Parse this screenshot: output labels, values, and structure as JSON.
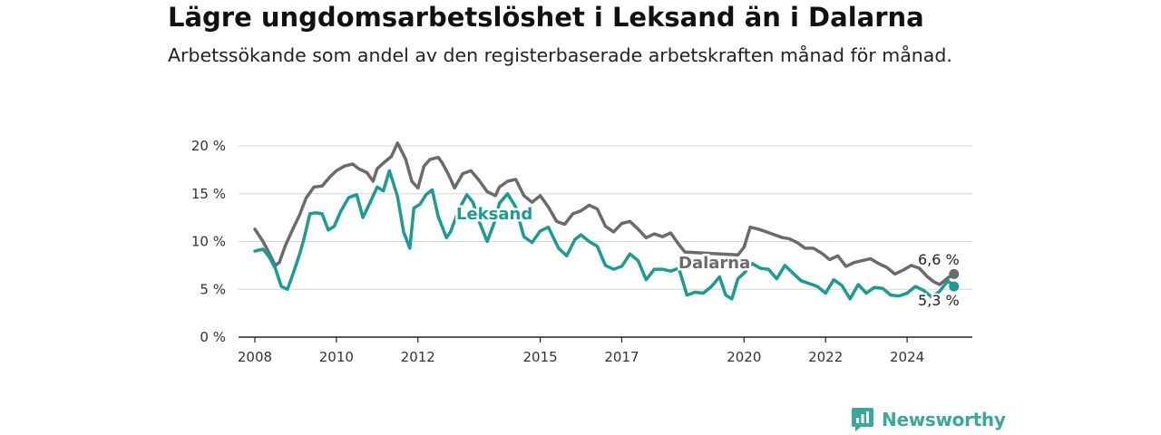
{
  "title": "Lägre ungdomsarbetslöshet i Leksand än i Dalarna",
  "subtitle": "Arbetssökande som andel av den registerbaserade arbetskraften månad för månad.",
  "brand": {
    "name": "Newsworthy",
    "icon": "newsworthy-logo-icon",
    "color": "#3aa79b"
  },
  "colors": {
    "Leksand": "#1a9c92",
    "Dalarna": "#6b6a6f",
    "grid": "#d6d6d6",
    "axis": "#222222"
  },
  "chart_data": {
    "type": "line",
    "ylim": [
      0,
      20
    ],
    "xlim": [
      2007.6,
      2025.6
    ],
    "yticks": [
      {
        "value": 0,
        "label": "0 %"
      },
      {
        "value": 5,
        "label": "5 %"
      },
      {
        "value": 10,
        "label": "10 %"
      },
      {
        "value": 15,
        "label": "15 %"
      },
      {
        "value": 20,
        "label": "20 %"
      }
    ],
    "xticks": [
      {
        "value": 2008,
        "label": "2008"
      },
      {
        "value": 2010,
        "label": "2010"
      },
      {
        "value": 2012,
        "label": "2012"
      },
      {
        "value": 2015,
        "label": "2015"
      },
      {
        "value": 2017,
        "label": "2017"
      },
      {
        "value": 2020,
        "label": "2020"
      },
      {
        "value": 2022,
        "label": "2022"
      },
      {
        "value": 2024,
        "label": "2024"
      }
    ],
    "grid": true,
    "series": [
      {
        "name": "Dalarna",
        "end_label": "6,6 %",
        "x": [
          2008.0,
          2008.2,
          2008.35,
          2008.5,
          2008.6,
          2008.75,
          2008.9,
          2009.1,
          2009.25,
          2009.45,
          2009.65,
          2009.85,
          2010.0,
          2010.2,
          2010.4,
          2010.55,
          2010.75,
          2010.9,
          2011.0,
          2011.15,
          2011.35,
          2011.5,
          2011.7,
          2011.85,
          2012.0,
          2012.15,
          2012.3,
          2012.5,
          2012.6,
          2012.75,
          2012.9,
          2013.1,
          2013.3,
          2013.5,
          2013.7,
          2013.9,
          2014.0,
          2014.2,
          2014.4,
          2014.6,
          2014.8,
          2015.0,
          2015.2,
          2015.4,
          2015.6,
          2015.8,
          2016.0,
          2016.2,
          2016.4,
          2016.6,
          2016.8,
          2017.0,
          2017.2,
          2017.4,
          2017.6,
          2017.8,
          2018.0,
          2018.2,
          2018.4,
          2018.55,
          2019.85,
          2020.0,
          2020.15,
          2020.35,
          2020.55,
          2020.75,
          2020.95,
          2021.1,
          2021.3,
          2021.5,
          2021.7,
          2021.9,
          2022.1,
          2022.3,
          2022.5,
          2022.7,
          2022.9,
          2023.1,
          2023.3,
          2023.5,
          2023.7,
          2023.9,
          2024.1,
          2024.3,
          2024.5,
          2024.65,
          2024.8,
          2025.0,
          2025.15
        ],
        "values": [
          11.3,
          10.0,
          8.8,
          7.5,
          7.8,
          9.6,
          11.0,
          12.8,
          14.5,
          15.7,
          15.8,
          16.8,
          17.4,
          17.9,
          18.1,
          17.6,
          17.2,
          16.3,
          17.6,
          18.2,
          18.9,
          20.3,
          18.6,
          16.3,
          15.6,
          17.9,
          18.6,
          18.8,
          18.2,
          17.0,
          15.6,
          17.1,
          17.4,
          16.4,
          15.2,
          14.8,
          15.7,
          16.3,
          16.5,
          14.8,
          14.1,
          14.8,
          13.6,
          12.1,
          11.8,
          12.9,
          13.2,
          13.8,
          13.4,
          11.6,
          11.0,
          11.9,
          12.1,
          11.3,
          10.4,
          10.8,
          10.5,
          10.9,
          9.7,
          8.9,
          8.6,
          9.4,
          11.5,
          11.3,
          11.0,
          10.7,
          10.4,
          10.3,
          9.9,
          9.3,
          9.3,
          8.8,
          8.1,
          8.5,
          7.4,
          7.8,
          8.0,
          8.2,
          7.7,
          7.3,
          6.6,
          7.0,
          7.5,
          7.2,
          6.3,
          5.8,
          5.5,
          6.2,
          6.6
        ]
      },
      {
        "name": "Leksand",
        "end_label": "5,3 %",
        "x": [
          2008.0,
          2008.2,
          2008.35,
          2008.5,
          2008.65,
          2008.8,
          2008.95,
          2009.1,
          2009.2,
          2009.35,
          2009.5,
          2009.65,
          2009.8,
          2009.95,
          2010.1,
          2010.3,
          2010.5,
          2010.65,
          2010.85,
          2011.0,
          2011.15,
          2011.3,
          2011.5,
          2011.65,
          2011.8,
          2011.9,
          2012.05,
          2012.2,
          2012.35,
          2012.5,
          2012.7,
          2012.8,
          2013.0,
          2013.2,
          2013.35,
          2013.5,
          2013.7,
          2013.9,
          2014.0,
          2014.2,
          2014.4,
          2014.6,
          2014.8,
          2015.0,
          2015.2,
          2015.45,
          2015.65,
          2015.85,
          2016.0,
          2016.2,
          2016.4,
          2016.6,
          2016.8,
          2017.0,
          2017.2,
          2017.4,
          2017.6,
          2017.8,
          2018.0,
          2018.2,
          2018.4,
          2018.6,
          2018.8,
          2019.0,
          2019.2,
          2019.4,
          2019.55,
          2019.7,
          2019.85,
          2020.0,
          2020.2,
          2020.4,
          2020.6,
          2020.8,
          2021.0,
          2021.2,
          2021.4,
          2021.6,
          2021.8,
          2022.0,
          2022.2,
          2022.4,
          2022.6,
          2022.8,
          2023.0,
          2023.2,
          2023.4,
          2023.6,
          2023.8,
          2024.0,
          2024.2,
          2024.4,
          2024.6,
          2024.8,
          2025.0,
          2025.15
        ],
        "values": [
          9.0,
          9.2,
          8.4,
          7.2,
          5.3,
          5.0,
          6.8,
          8.7,
          10.2,
          12.9,
          13.0,
          12.9,
          11.2,
          11.6,
          13.1,
          14.6,
          14.9,
          12.5,
          14.3,
          15.7,
          15.3,
          17.4,
          14.7,
          11.0,
          9.3,
          13.5,
          13.9,
          14.9,
          15.4,
          12.6,
          10.4,
          11.0,
          13.3,
          14.9,
          14.1,
          12.1,
          10.0,
          12.3,
          14.0,
          15.0,
          13.6,
          10.5,
          9.9,
          11.1,
          11.5,
          9.3,
          8.5,
          10.2,
          10.7,
          10.0,
          9.5,
          7.5,
          7.1,
          7.4,
          8.7,
          8.0,
          6.0,
          7.1,
          7.1,
          6.9,
          7.2,
          4.4,
          4.7,
          4.6,
          5.3,
          6.3,
          4.4,
          4.0,
          6.1,
          6.7,
          7.7,
          7.2,
          7.1,
          6.1,
          7.5,
          6.7,
          5.9,
          5.6,
          5.3,
          4.6,
          6.0,
          5.4,
          4.0,
          5.5,
          4.6,
          5.2,
          5.1,
          4.4,
          4.3,
          4.6,
          5.3,
          4.9,
          4.2,
          4.8,
          5.9,
          5.3
        ]
      }
    ]
  }
}
